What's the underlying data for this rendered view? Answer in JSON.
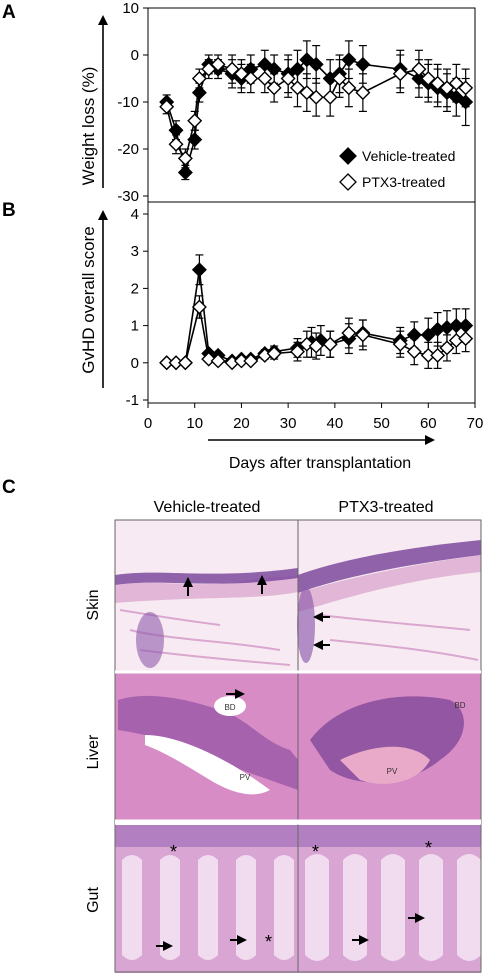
{
  "panel_labels": {
    "a": "A",
    "b": "B",
    "c": "C"
  },
  "chart_data": [
    {
      "type": "line",
      "panel": "A",
      "ylabel": "Weight loss (%)",
      "xlabel": "",
      "ylim": [
        -30,
        10
      ],
      "yticks": [
        "10",
        "0",
        "-10",
        "-20",
        "-30"
      ],
      "legend": {
        "placement": "bottom-right",
        "entries": [
          "Vehicle-treated",
          "PTX3-treated"
        ]
      },
      "series": [
        {
          "name": "Vehicle-treated",
          "marker": "filled-diamond",
          "x": [
            4,
            6,
            8,
            10,
            11,
            13,
            15,
            18,
            20,
            22,
            25,
            27,
            30,
            32,
            34,
            36,
            39,
            41,
            43,
            46,
            54,
            58,
            60,
            62,
            64,
            66,
            68
          ],
          "y": [
            -10,
            -16,
            -25,
            -18,
            -8,
            -2,
            -3,
            -4,
            -5,
            -3,
            -2,
            -3,
            -4,
            -3,
            -1,
            -2,
            -5,
            -4,
            -1,
            -2,
            -3,
            -5,
            -6,
            -7,
            -8,
            -9,
            -10
          ],
          "err": [
            1.5,
            2,
            1.5,
            2,
            2,
            2,
            2,
            3,
            3,
            3,
            3,
            3,
            4,
            4,
            4,
            4,
            4,
            4,
            4,
            4,
            4,
            4,
            4,
            4,
            4,
            4,
            5
          ]
        },
        {
          "name": "PTX3-treated",
          "marker": "open-diamond",
          "x": [
            4,
            6,
            8,
            10,
            11,
            13,
            15,
            18,
            20,
            22,
            25,
            27,
            30,
            32,
            34,
            36,
            39,
            41,
            43,
            46,
            54,
            58,
            60,
            62,
            64,
            66,
            68
          ],
          "y": [
            -11,
            -19,
            -22,
            -14,
            -5,
            -3,
            -2,
            -3,
            -4,
            -5,
            -5,
            -7,
            -5,
            -7,
            -8,
            -9,
            -9,
            -5,
            -7,
            -8,
            -4,
            -3,
            -5,
            -6,
            -7,
            -6,
            -7
          ],
          "err": [
            1.5,
            2,
            2,
            2,
            2,
            2,
            2,
            3,
            3,
            3,
            3,
            3,
            4,
            4,
            4,
            4,
            4,
            4,
            4,
            4,
            4,
            4,
            4,
            4,
            4,
            4,
            4
          ]
        }
      ]
    },
    {
      "type": "line",
      "panel": "B",
      "ylabel": "GvHD overall score",
      "xlabel": "Days after transplantation",
      "xlim": [
        0,
        70
      ],
      "xticks": [
        "0",
        "10",
        "20",
        "30",
        "40",
        "50",
        "60",
        "70"
      ],
      "ylim": [
        -1,
        4
      ],
      "yticks": [
        "4",
        "3",
        "2",
        "1",
        "0",
        "-1"
      ],
      "series": [
        {
          "name": "Vehicle-treated",
          "marker": "filled-diamond",
          "x": [
            4,
            6,
            8,
            11,
            13,
            15,
            18,
            20,
            22,
            25,
            27,
            32,
            35,
            37,
            39,
            43,
            46,
            54,
            57,
            60,
            62,
            64,
            66,
            68
          ],
          "y": [
            0,
            0,
            0,
            2.5,
            0.25,
            0.2,
            0.05,
            0.1,
            0.1,
            0.25,
            0.3,
            0.4,
            0.55,
            0.6,
            0.5,
            0.65,
            0.8,
            0.6,
            0.75,
            0.75,
            0.9,
            0.95,
            1.0,
            1.0
          ],
          "err": [
            0,
            0,
            0,
            0.4,
            0.05,
            0.05,
            0.05,
            0.05,
            0.05,
            0.1,
            0.15,
            0.25,
            0.4,
            0.4,
            0.35,
            0.4,
            0.35,
            0.35,
            0.35,
            0.45,
            0.45,
            0.45,
            0.45,
            0.45
          ]
        },
        {
          "name": "PTX3-treated",
          "marker": "open-diamond",
          "x": [
            4,
            6,
            8,
            11,
            13,
            15,
            18,
            20,
            22,
            25,
            27,
            32,
            34,
            36,
            39,
            43,
            46,
            54,
            57,
            60,
            62,
            64,
            66,
            68
          ],
          "y": [
            0,
            0,
            0,
            1.5,
            0.1,
            0.05,
            0.0,
            0.05,
            0.05,
            0.2,
            0.25,
            0.3,
            0.5,
            0.45,
            0.5,
            0.8,
            0.75,
            0.5,
            0.3,
            0.2,
            0.2,
            0.4,
            0.6,
            0.65
          ],
          "err": [
            0,
            0,
            0,
            0.3,
            0.05,
            0.05,
            0.05,
            0.05,
            0.05,
            0.1,
            0.15,
            0.25,
            0.35,
            0.35,
            0.35,
            0.4,
            0.4,
            0.35,
            0.35,
            0.35,
            0.35,
            0.35,
            0.35,
            0.35
          ]
        }
      ]
    }
  ],
  "histology": {
    "columns": [
      "Vehicle-treated",
      "PTX3-treated"
    ],
    "rows": [
      "Skin",
      "Liver",
      "Gut"
    ],
    "annotations": {
      "bd": "BD",
      "pv": "PV",
      "asterisk": "*"
    },
    "stain_colors": {
      "pink": "#e9a9d2",
      "purple": "#7a3d9a",
      "dark": "#3b1f6b",
      "pale": "#f3dfee"
    }
  }
}
